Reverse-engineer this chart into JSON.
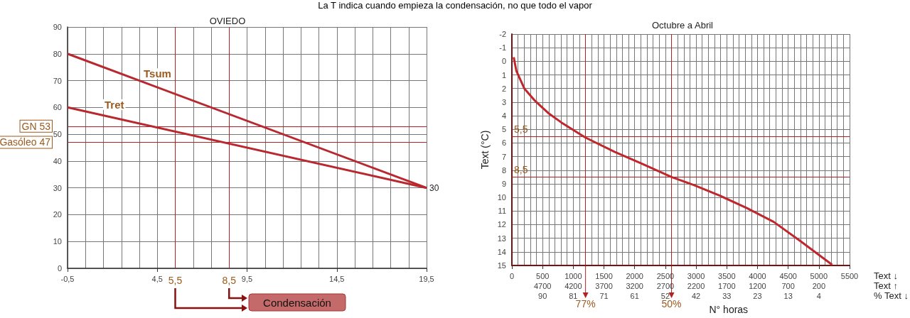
{
  "chart_data": [
    {
      "type": "line",
      "title": "OVIEDO",
      "xlim": [
        -0.5,
        19.5
      ],
      "xticks": [
        {
          "value": -0.5,
          "label": "-0,5"
        },
        {
          "value": 4.5,
          "label": "4,5"
        },
        {
          "value": 9.5,
          "label": "9,5"
        },
        {
          "value": 14.5,
          "label": "14,5"
        },
        {
          "value": 19.5,
          "label": "19,5"
        }
      ],
      "ylim": [
        0,
        90
      ],
      "yticks": [
        0,
        10,
        20,
        30,
        40,
        50,
        60,
        70,
        80,
        90
      ],
      "grid": true,
      "series": [
        {
          "name": "Tsum",
          "color": "#b8282e",
          "x": [
            -0.5,
            19.5
          ],
          "values": [
            80,
            30
          ]
        },
        {
          "name": "Tret",
          "color": "#b8282e",
          "x": [
            -0.5,
            19.5
          ],
          "values": [
            60,
            30
          ]
        }
      ],
      "ref_lines": [
        {
          "axis": "y",
          "value": 53,
          "label": "GN 53",
          "color": "#b22222"
        },
        {
          "axis": "y",
          "value": 47,
          "label": "Gasóleo 47",
          "color": "#b22222"
        },
        {
          "axis": "x",
          "value": 5.5,
          "label": "5,5",
          "color": "#b22222"
        },
        {
          "axis": "x",
          "value": 8.5,
          "label": "8,5",
          "color": "#b22222"
        }
      ],
      "annotations": [
        "La T indica cuando empieza la condensación, no que todo el vapor",
        "Condensación",
        {
          "text": "30",
          "x": 19.5,
          "y": 30
        }
      ]
    },
    {
      "type": "line",
      "title": "Octubre a Abril",
      "xlabel": "N° horas",
      "ylabel": "Text (°C)",
      "xlim": [
        0,
        5500
      ],
      "xticks": [
        0,
        {
          "value": 500,
          "label": "500\n4700\n90"
        },
        {
          "value": 1000,
          "label": "1000\n4200\n81"
        },
        {
          "value": 1500,
          "label": "1500\n3700\n71"
        },
        {
          "value": 2000,
          "label": "2000\n3200\n61"
        },
        {
          "value": 2500,
          "label": "2500\n2700\n52"
        },
        {
          "value": 3000,
          "label": "3000\n2200\n42"
        },
        {
          "value": 3500,
          "label": "3500\n1700\n33"
        },
        {
          "value": 4000,
          "label": "4000\n1200\n23"
        },
        {
          "value": 4500,
          "label": "4500\n700\n13"
        },
        {
          "value": 5000,
          "label": "5000\n200\n4"
        },
        5500
      ],
      "ylim": [
        15,
        -2
      ],
      "yticks": [
        -2,
        -1,
        0,
        1,
        2,
        3,
        4,
        5,
        6,
        7,
        8,
        9,
        10,
        11,
        12,
        13,
        14,
        15
      ],
      "grid": true,
      "series": [
        {
          "color": "#c0272d",
          "x": [
            30,
            73,
            203,
            376,
            592,
            808,
            1197,
            1672,
            2105,
            2600,
            2969,
            3401,
            3833,
            4265,
            4697,
            5216
          ],
          "values": [
            -0.3,
            0.7,
            2.0,
            2.9,
            3.8,
            4.5,
            5.6,
            6.65,
            7.5,
            8.5,
            9.1,
            9.9,
            10.8,
            11.8,
            13.2,
            14.95
          ]
        }
      ],
      "ref_lines": [
        {
          "axis": "y",
          "value": 5.5,
          "label": "5,5",
          "color": "#b22222"
        },
        {
          "axis": "y",
          "value": 8.5,
          "label": "8,5",
          "color": "#b22222"
        },
        {
          "axis": "x",
          "value": 1200,
          "color": "#b22222"
        },
        {
          "axis": "x",
          "value": 2600,
          "color": "#b22222"
        }
      ],
      "annotations": [
        "Text ↓",
        "Text ↑",
        "% Text ↓",
        {
          "text": "77%",
          "x": 1200,
          "y": 15
        },
        {
          "text": "50%",
          "x": 2600,
          "y": 15
        }
      ]
    }
  ]
}
